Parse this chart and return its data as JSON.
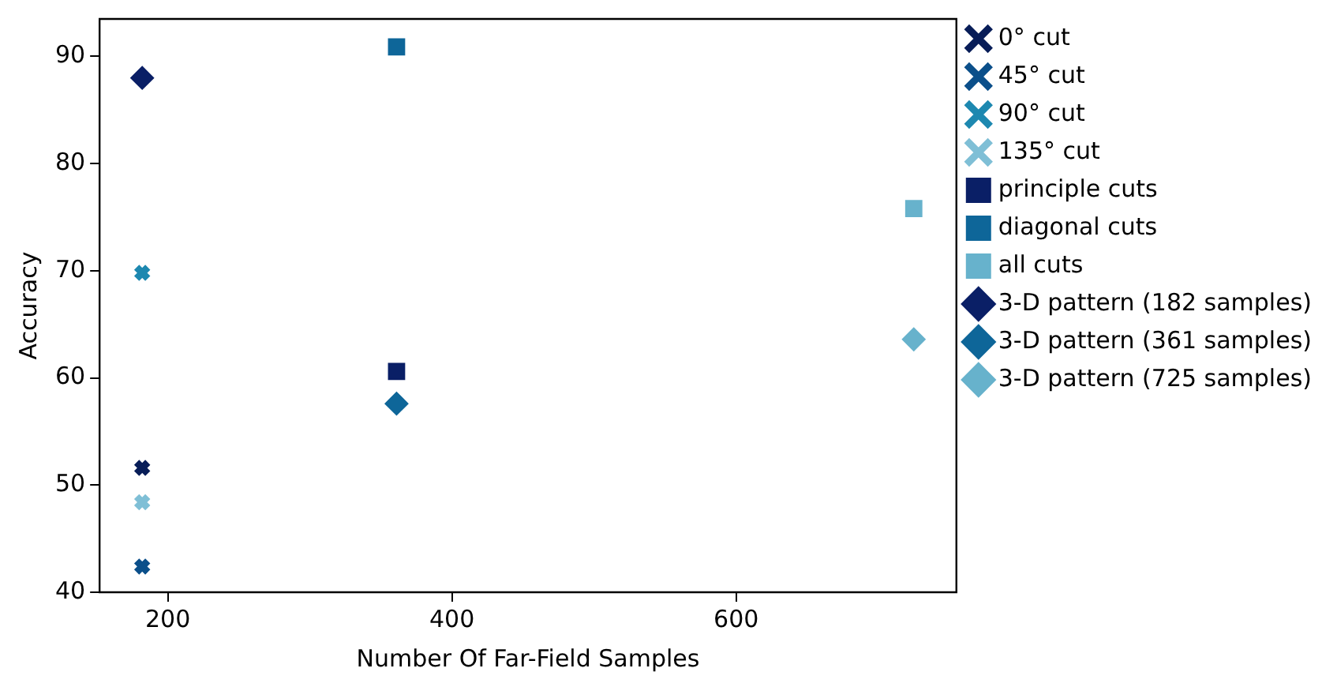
{
  "chart_data": {
    "type": "scatter",
    "xlabel": "Number Of Far-Field Samples",
    "ylabel": "Accuracy",
    "xlim": [
      152,
      755
    ],
    "xticks": [
      200,
      400,
      600
    ],
    "ylim": [
      40,
      93.5
    ],
    "yticks": [
      40,
      50,
      60,
      70,
      80,
      90
    ],
    "grid": false,
    "legend": "right",
    "series": [
      {
        "name": "0° cut",
        "color": "#081d58",
        "marker": "cross",
        "x": [
          182
        ],
        "values": [
          51.6
        ]
      },
      {
        "name": "45° cut",
        "color": "#0b4f8a",
        "marker": "cross",
        "x": [
          182
        ],
        "values": [
          42.4
        ]
      },
      {
        "name": "90° cut",
        "color": "#1d88b0",
        "marker": "cross",
        "x": [
          182
        ],
        "values": [
          69.8
        ]
      },
      {
        "name": "135° cut",
        "color": "#7fbfd6",
        "marker": "cross",
        "x": [
          182
        ],
        "values": [
          48.4
        ]
      },
      {
        "name": "principle cuts",
        "color": "#0a1f66",
        "marker": "square",
        "x": [
          361
        ],
        "values": [
          60.6
        ]
      },
      {
        "name": "diagonal cuts",
        "color": "#0e6699",
        "marker": "square",
        "x": [
          361
        ],
        "values": [
          90.9
        ]
      },
      {
        "name": "all cuts",
        "color": "#67b2cc",
        "marker": "square",
        "x": [
          725
        ],
        "values": [
          75.8
        ]
      },
      {
        "name": "3-D pattern (182 samples)",
        "color": "#0a1f66",
        "marker": "diamond",
        "x": [
          182
        ],
        "values": [
          88.0
        ]
      },
      {
        "name": "3-D pattern (361 samples)",
        "color": "#0e6699",
        "marker": "diamond",
        "x": [
          361
        ],
        "values": [
          57.6
        ]
      },
      {
        "name": "3-D pattern (725 samples)",
        "color": "#67b2cc",
        "marker": "diamond",
        "x": [
          725
        ],
        "values": [
          63.6
        ]
      }
    ]
  }
}
